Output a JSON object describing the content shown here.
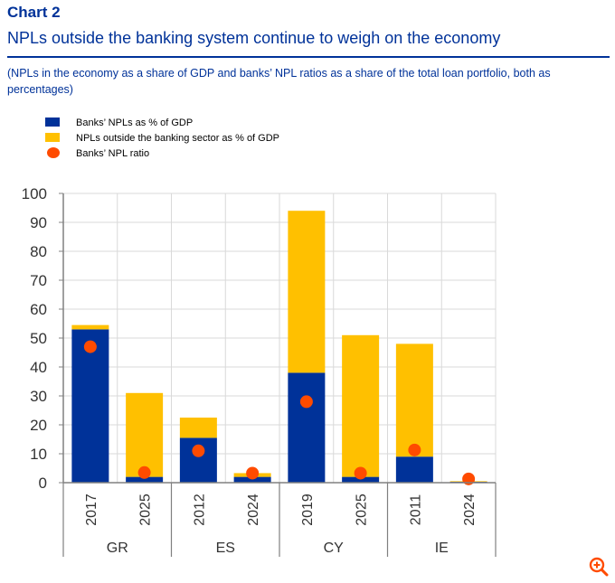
{
  "chart_label": "Chart 2",
  "title": "NPLs outside the banking system continue to weigh on the economy",
  "subtitle": "(NPLs in the economy as a share of GDP and banks’ NPL ratios as a share of the total loan portfolio, both as percentages)",
  "colors": {
    "blue": "#003299",
    "yellow": "#ffc000",
    "orange": "#ff4b00",
    "grid": "#d9d9d9",
    "axis": "#808080"
  },
  "legend": [
    {
      "label": "Banks’ NPLs as % of GDP",
      "color": "#003299",
      "shape": "square"
    },
    {
      "label": "NPLs outside the banking sector as % of GDP",
      "color": "#ffc000",
      "shape": "square"
    },
    {
      "label": "Banks’ NPL ratio",
      "color": "#ff4b00",
      "shape": "dot"
    }
  ],
  "chart_data": {
    "type": "bar",
    "stacked": true,
    "ylim": [
      0,
      100
    ],
    "yticks": [
      0,
      10,
      20,
      30,
      40,
      50,
      60,
      70,
      80,
      90,
      100
    ],
    "groups": [
      "GR",
      "ES",
      "CY",
      "IE"
    ],
    "categories": [
      "2017",
      "2025",
      "2012",
      "2024",
      "2019",
      "2025",
      "2011",
      "2024"
    ],
    "category_group": [
      0,
      0,
      1,
      1,
      2,
      2,
      3,
      3
    ],
    "series": [
      {
        "name": "Banks’ NPLs as % of GDP",
        "kind": "bar",
        "values": [
          53,
          2,
          15.5,
          2,
          38,
          2,
          9,
          0.3
        ]
      },
      {
        "name": "NPLs outside the banking sector as % of GDP",
        "kind": "bar",
        "values": [
          1.5,
          29,
          7,
          1.3,
          56,
          49,
          39,
          0.2
        ]
      },
      {
        "name": "Banks’ NPL ratio",
        "kind": "dot",
        "values": [
          47,
          3.5,
          11,
          3.3,
          28,
          3.3,
          11.3,
          1.3
        ]
      }
    ]
  },
  "zoom_icon": "zoom-in-icon"
}
